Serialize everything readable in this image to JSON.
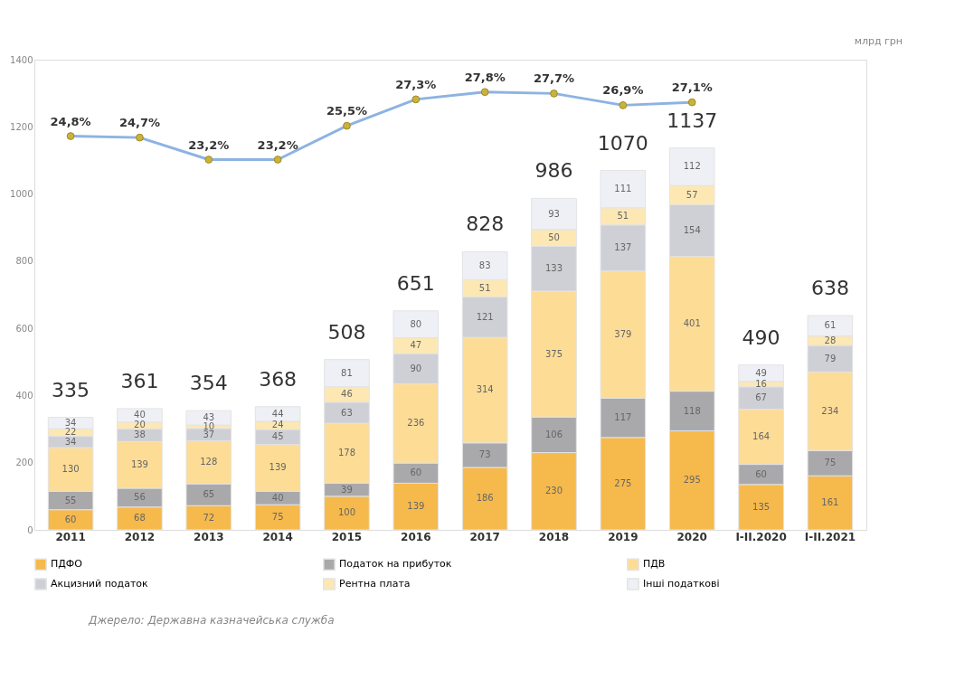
{
  "chart_data": {
    "type": "bar",
    "stacked": true,
    "categories": [
      "2011",
      "2012",
      "2013",
      "2014",
      "2015",
      "2016",
      "2017",
      "2018",
      "2019",
      "2020",
      "I-II.2020",
      "I-II.2021"
    ],
    "series": [
      {
        "name": "ПДФО",
        "color": "#f6b94c",
        "values": [
          60,
          68,
          72,
          75,
          100,
          139,
          186,
          230,
          275,
          295,
          135,
          161
        ]
      },
      {
        "name": "Податок на прибуток",
        "color": "#a9a9ab",
        "values": [
          55,
          56,
          65,
          40,
          39,
          60,
          73,
          106,
          117,
          118,
          60,
          75
        ]
      },
      {
        "name": "ПДВ",
        "color": "#fddc96",
        "values": [
          130,
          139,
          128,
          139,
          178,
          236,
          314,
          375,
          379,
          401,
          164,
          234
        ]
      },
      {
        "name": "Акцизний податок",
        "color": "#cfd0d6",
        "values": [
          34,
          38,
          37,
          45,
          63,
          90,
          121,
          133,
          137,
          154,
          67,
          79
        ]
      },
      {
        "name": "Рентна плата",
        "color": "#fde8b4",
        "values": [
          22,
          20,
          10,
          24,
          46,
          47,
          51,
          50,
          51,
          57,
          16,
          28
        ]
      },
      {
        "name": "Інші податкові",
        "color": "#eef0f5",
        "values": [
          34,
          40,
          43,
          44,
          81,
          80,
          83,
          93,
          111,
          112,
          49,
          61
        ]
      },
      {
        "type": "line",
        "axis": "y2",
        "color": "#8db3e2",
        "values": [
          24.8,
          24.7,
          23.2,
          23.2,
          25.5,
          27.3,
          27.8,
          27.7,
          26.9,
          27.1,
          null,
          null
        ],
        "value_labels": [
          "24,8%",
          "24,7%",
          "23,2%",
          "23,2%",
          "25,5%",
          "27,3%",
          "27,8%",
          "27,7%",
          "26,9%",
          "27,1%",
          null,
          null
        ]
      }
    ],
    "totals": [
      "335",
      "361",
      "354",
      "368",
      "508",
      "651",
      "828",
      "986",
      "1070",
      "1137",
      "490",
      "638"
    ],
    "data_labels": true,
    "ylim": [
      0,
      1400
    ],
    "yticks": [
      0,
      200,
      400,
      600,
      800,
      1000,
      1200,
      1400
    ],
    "y2lim": [
      -2,
      30
    ],
    "marker": "circle",
    "grid": false,
    "legend": "bottom",
    "annotations": [
      "млрд грн",
      "Джерело: Державна казначейська служба"
    ]
  }
}
